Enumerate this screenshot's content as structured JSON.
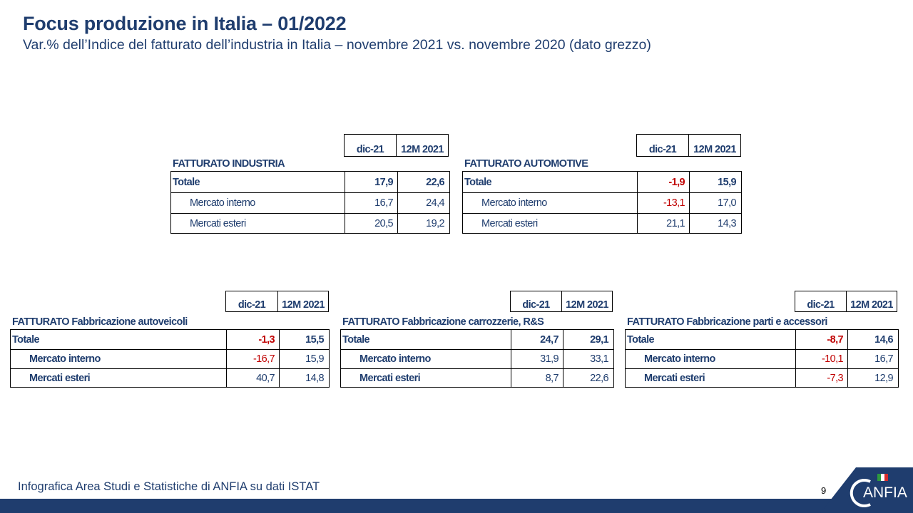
{
  "title": "Focus produzione in Italia – 01/2022",
  "subtitle": "Var.% dell’Indice del fatturato dell’industria in Italia – novembre 2021 vs. novembre 2020 (dato grezzo)",
  "columns": [
    "dic-21",
    "12M 2021"
  ],
  "tables": [
    {
      "title": "FATTURATO INDUSTRIA",
      "rows": [
        {
          "label": "Totale",
          "v1": "17,9",
          "v2": "22,6"
        },
        {
          "label": "Mercato interno",
          "v1": "16,7",
          "v2": "24,4"
        },
        {
          "label": "Mercati esteri",
          "v1": "20,5",
          "v2": "19,2"
        }
      ]
    },
    {
      "title": "FATTURATO AUTOMOTIVE",
      "rows": [
        {
          "label": "Totale",
          "v1": "-1,9",
          "v2": "15,9"
        },
        {
          "label": "Mercato interno",
          "v1": "-13,1",
          "v2": "17,0"
        },
        {
          "label": "Mercati esteri",
          "v1": "21,1",
          "v2": "14,3"
        }
      ]
    },
    {
      "title": "FATTURATO Fabbricazione autoveicoli",
      "rows": [
        {
          "label": "Totale",
          "v1": "-1,3",
          "v2": "15,5"
        },
        {
          "label": "Mercato interno",
          "v1": "-16,7",
          "v2": "15,9"
        },
        {
          "label": "Mercati esteri",
          "v1": "40,7",
          "v2": "14,8"
        }
      ]
    },
    {
      "title": "FATTURATO Fabbricazione carrozzerie, R&S",
      "rows": [
        {
          "label": "Totale",
          "v1": "24,7",
          "v2": "29,1"
        },
        {
          "label": "Mercato interno",
          "v1": "31,9",
          "v2": "33,1"
        },
        {
          "label": "Mercati esteri",
          "v1": "8,7",
          "v2": "22,6"
        }
      ]
    },
    {
      "title": "FATTURATO Fabbricazione parti e accessori",
      "rows": [
        {
          "label": "Totale",
          "v1": "-8,7",
          "v2": "14,6"
        },
        {
          "label": "Mercato interno",
          "v1": "-10,1",
          "v2": "16,7"
        },
        {
          "label": "Mercati esteri",
          "v1": "-7,3",
          "v2": "12,9"
        }
      ]
    }
  ],
  "footer": {
    "source": "Infografica Area Studi e Statistiche di ANFIA su dati ISTAT",
    "page_number": "9",
    "logo_text": "ANFIA"
  },
  "colors": {
    "brand_blue": "#1f3d6e",
    "negative_red": "#c00000"
  }
}
